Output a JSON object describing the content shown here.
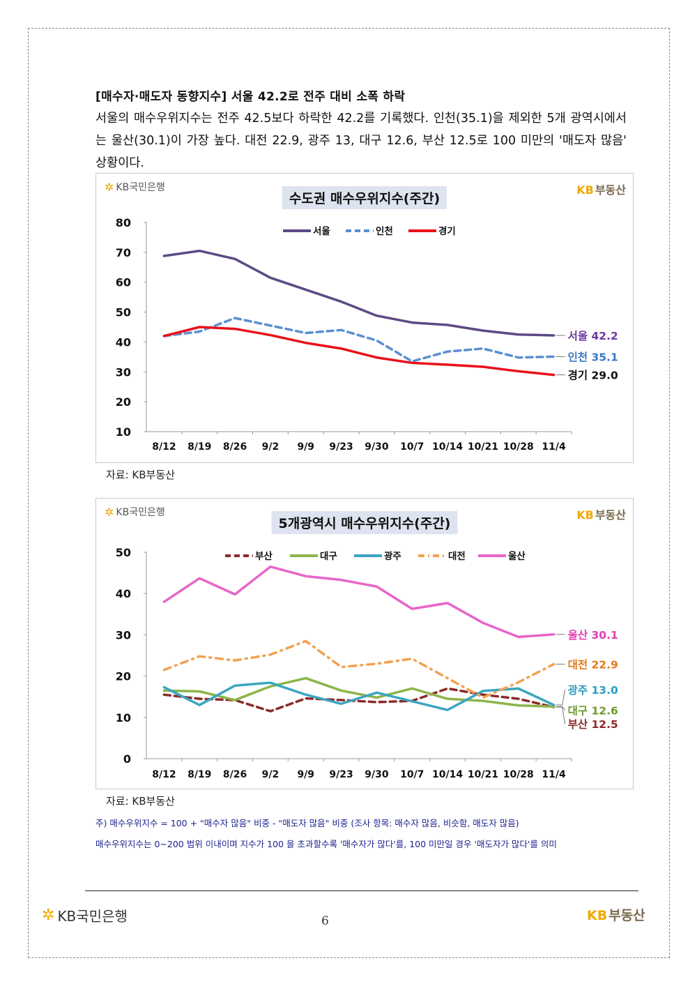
{
  "header": {
    "section_title": "[매수자·매도자 동향지수] 서울 42.2로 전주 대비 소폭 하락",
    "body": "서울의 매수우위지수는 전주 42.5보다 하락한 42.2를 기록했다. 인천(35.1)을 제외한 5개 광역시에서는 울산(30.1)이 가장 높다. 대전 22.9, 광주 13, 대구 12.6, 부산 12.5로 100 미만의 '매도자 많음' 상황이다."
  },
  "logos": {
    "bank_star": "✲",
    "bank_name": "KB국민은행",
    "kb": "KB",
    "kb_suffix": "부동산"
  },
  "colors": {
    "seoul": "#5c4a86",
    "incheon": "#5b8fd0",
    "gyeonggi": "#e8111a",
    "busan": "#8b2b2b",
    "daegu": "#8db44a",
    "gwangju": "#3aa6c0",
    "daejeon": "#f2a150",
    "ulsan": "#e865c8"
  },
  "chart_data": [
    {
      "type": "line",
      "title": "수도권 매수우위지수(주간)",
      "categories": [
        "8/12",
        "8/19",
        "8/26",
        "9/2",
        "9/9",
        "9/23",
        "9/30",
        "10/7",
        "10/14",
        "10/21",
        "10/28",
        "11/4"
      ],
      "ylim": [
        10,
        80
      ],
      "yticks": [
        10,
        20,
        30,
        40,
        50,
        60,
        70,
        80
      ],
      "grid": false,
      "legend_position": "top-center",
      "series": [
        {
          "name": "서울",
          "style": "solid",
          "values": [
            68.8,
            70.5,
            67.8,
            61.5,
            57.5,
            53.5,
            48.8,
            46.5,
            45.7,
            43.8,
            42.5,
            42.2
          ],
          "end_label": "서울 42.2",
          "label_color": "#6a3aa0"
        },
        {
          "name": "인천",
          "style": "dashed",
          "values": [
            42.0,
            43.5,
            48.0,
            45.5,
            43.0,
            44.0,
            40.5,
            33.5,
            36.8,
            37.8,
            34.8,
            35.1
          ],
          "end_label": "인천 35.1",
          "label_color": "#3a78c0"
        },
        {
          "name": "경기",
          "style": "solid",
          "values": [
            42.0,
            45.0,
            44.4,
            42.3,
            39.7,
            37.8,
            34.8,
            33.0,
            32.4,
            31.7,
            30.2,
            29.0
          ],
          "end_label": "경기 29.0",
          "label_color": "#111111"
        }
      ],
      "source": "자료: KB부동산"
    },
    {
      "type": "line",
      "title": "5개광역시 매수우위지수(주간)",
      "categories": [
        "8/12",
        "8/19",
        "8/26",
        "9/2",
        "9/9",
        "9/23",
        "9/30",
        "10/7",
        "10/14",
        "10/21",
        "10/28",
        "11/4"
      ],
      "ylim": [
        0,
        50
      ],
      "yticks": [
        0,
        10,
        20,
        30,
        40,
        50
      ],
      "grid": false,
      "legend_position": "top-center",
      "series": [
        {
          "name": "부산",
          "style": "dashed",
          "values": [
            15.5,
            14.5,
            14.2,
            11.5,
            14.6,
            14.2,
            13.7,
            14.0,
            17.0,
            15.5,
            14.5,
            12.5
          ],
          "end_label": "부산 12.5",
          "label_color": "#8b2b2b"
        },
        {
          "name": "대구",
          "style": "solid",
          "values": [
            16.5,
            16.3,
            14.2,
            17.5,
            19.5,
            16.5,
            14.8,
            17.0,
            14.5,
            14.0,
            12.9,
            12.6
          ],
          "end_label": "대구 12.6",
          "label_color": "#6e9a2e"
        },
        {
          "name": "광주",
          "style": "solid",
          "values": [
            17.3,
            13.0,
            17.7,
            18.4,
            15.5,
            13.3,
            16.0,
            13.9,
            11.8,
            16.4,
            17.0,
            13.0
          ],
          "end_label": "광주 13.0",
          "label_color": "#2a9fc0"
        },
        {
          "name": "대전",
          "style": "dashdot",
          "values": [
            21.5,
            24.8,
            23.8,
            25.2,
            28.5,
            22.2,
            23.0,
            24.2,
            19.5,
            14.8,
            18.5,
            22.9
          ],
          "end_label": "대전 22.9",
          "label_color": "#e07a1a"
        },
        {
          "name": "울산",
          "style": "solid",
          "values": [
            38.0,
            43.7,
            39.8,
            46.5,
            44.2,
            43.3,
            41.7,
            36.3,
            37.7,
            32.9,
            29.5,
            30.1
          ],
          "end_label": "울산 30.1",
          "label_color": "#e040b0"
        }
      ],
      "source": "자료: KB부동산"
    }
  ],
  "footnotes": [
    "주) 매수우위지수 = 100 + \"매수자 많음\" 비중 - \"매도자 많음\" 비중  (조사 항목: 매수자 많음, 비슷함, 매도자 많음)",
    "매수우위지수는 0~200 범위 이내이며 지수가 100 을 초과할수록 '매수자가 많다'를, 100 미만일 경우 '매도자가 많다'를 의미"
  ],
  "footer": {
    "page_number": "6"
  }
}
